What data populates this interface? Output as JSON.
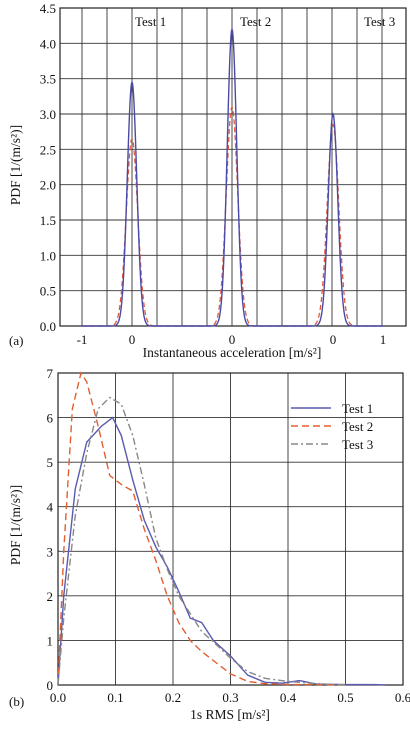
{
  "chart_data": [
    {
      "panel_label": "(a)",
      "type": "line",
      "title": "",
      "xlabel": "Instantaneous acceleration [m/s²]",
      "ylabel": "PDF [1/(m/s²)]",
      "xlim": [
        -1.5,
        1.2
      ],
      "ylim": [
        0,
        4.5
      ],
      "grid": true,
      "xticks": [
        "-1",
        "0",
        "0",
        "0",
        "1"
      ],
      "yticks": [
        "0.0",
        "0.5",
        "1.0",
        "1.5",
        "2.0",
        "2.5",
        "3.0",
        "3.5",
        "4.0",
        "4.5"
      ],
      "section_labels": [
        "Test 1",
        "Test 2",
        "Test 3"
      ],
      "peaks": [
        {
          "test": "Test 1",
          "center": 0,
          "solid_peak": 3.45,
          "dashed_peak": 2.65
        },
        {
          "test": "Test 2",
          "center": 0,
          "solid_peak": 4.2,
          "dashed_peak": 3.1
        },
        {
          "test": "Test 3",
          "center": 0,
          "solid_peak": 3.0,
          "dashed_peak": 2.85
        }
      ],
      "series_colors": {
        "solid": "#4a4aa8",
        "dashed": "#e05a3a"
      }
    },
    {
      "panel_label": "(b)",
      "type": "line",
      "title": "",
      "xlabel": "1s RMS [m/s²]",
      "ylabel": "PDF [1/(m/s²)]",
      "xlim": [
        0,
        0.6
      ],
      "ylim": [
        0,
        7
      ],
      "grid": true,
      "legend": "top-right",
      "xticks": [
        "0.0",
        "0.1",
        "0.2",
        "0.3",
        "0.4",
        "0.5",
        "0.6"
      ],
      "yticks": [
        "0",
        "1",
        "2",
        "3",
        "4",
        "5",
        "6",
        "7"
      ],
      "series": [
        {
          "name": "Test 1",
          "style": "solid",
          "color": "#5a5ab0",
          "x": [
            0,
            0.01,
            0.03,
            0.05,
            0.075,
            0.095,
            0.11,
            0.13,
            0.15,
            0.17,
            0.19,
            0.21,
            0.23,
            0.25,
            0.27,
            0.3,
            0.33,
            0.36,
            0.39,
            0.42,
            0.45,
            0.5,
            0.55,
            0.57
          ],
          "y": [
            0,
            2.0,
            4.4,
            5.45,
            5.8,
            6.0,
            5.6,
            4.6,
            3.7,
            3.1,
            2.65,
            2.1,
            1.5,
            1.4,
            1.0,
            0.65,
            0.22,
            0.06,
            0.04,
            0.1,
            0.02,
            0.01,
            0.01,
            0
          ]
        },
        {
          "name": "Test 2",
          "style": "dashed",
          "color": "#e06030",
          "x": [
            0,
            0.01,
            0.025,
            0.04,
            0.05,
            0.07,
            0.09,
            0.11,
            0.13,
            0.15,
            0.17,
            0.19,
            0.21,
            0.23,
            0.25,
            0.28,
            0.3,
            0.33,
            0.36,
            0.4,
            0.45,
            0.5
          ],
          "y": [
            0,
            3.0,
            6.2,
            7.0,
            6.8,
            5.8,
            4.7,
            4.5,
            4.35,
            3.5,
            2.8,
            2.0,
            1.4,
            1.0,
            0.75,
            0.45,
            0.25,
            0.08,
            0.03,
            0.01,
            0.01,
            0
          ]
        },
        {
          "name": "Test 3",
          "style": "dashdot",
          "color": "#888888",
          "x": [
            0,
            0.01,
            0.03,
            0.05,
            0.07,
            0.09,
            0.11,
            0.13,
            0.15,
            0.17,
            0.19,
            0.21,
            0.23,
            0.25,
            0.28,
            0.3,
            0.33,
            0.36,
            0.4,
            0.45,
            0.5
          ],
          "y": [
            0,
            1.5,
            3.8,
            5.2,
            6.2,
            6.45,
            6.3,
            5.6,
            4.5,
            3.3,
            2.6,
            2.0,
            1.6,
            1.2,
            0.85,
            0.6,
            0.3,
            0.15,
            0.08,
            0.03,
            0
          ]
        }
      ]
    }
  ]
}
